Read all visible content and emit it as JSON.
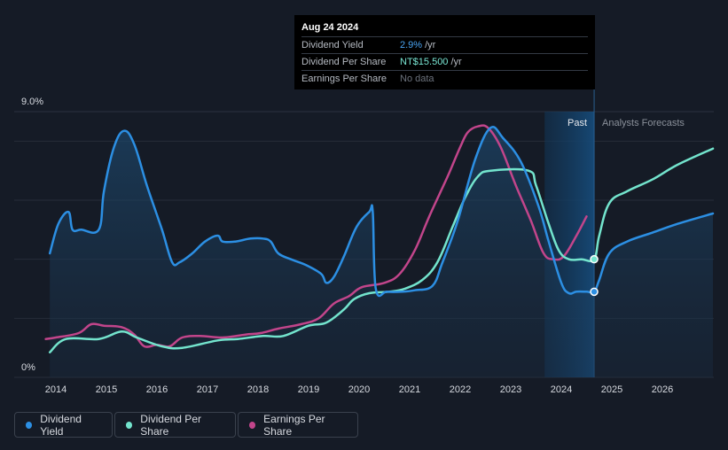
{
  "tooltip": {
    "date": "Aug 24 2024",
    "rows": [
      {
        "label": "Dividend Yield",
        "value": "2.9%",
        "unit": "/yr"
      },
      {
        "label": "Dividend Per Share",
        "value": "NT$15.500",
        "unit": "/yr"
      },
      {
        "label": "Earnings Per Share",
        "value": "No data",
        "unit": ""
      }
    ]
  },
  "legend": [
    {
      "label": "Dividend Yield",
      "color": "#2c8fe3"
    },
    {
      "label": "Dividend Per Share",
      "color": "#73e4cd"
    },
    {
      "label": "Earnings Per Share",
      "color": "#c2458b"
    }
  ],
  "chart_data": {
    "type": "line",
    "y_top_label": "9.0%",
    "y_bottom_label": "0%",
    "ylim": [
      0,
      9
    ],
    "xlim": [
      2013.8,
      2027.0
    ],
    "x_ticks": [
      "2014",
      "2015",
      "2016",
      "2017",
      "2018",
      "2019",
      "2020",
      "2021",
      "2022",
      "2023",
      "2024",
      "2025",
      "2026"
    ],
    "regions": {
      "past_label": "Past",
      "forecast_label": "Analysts Forecasts",
      "past_start": 2023.67,
      "past_end": 2024.65
    },
    "grid": true,
    "series": [
      {
        "name": "Dividend Yield",
        "color": "#2c8fe3",
        "area": true,
        "points": [
          [
            2013.88,
            4.2
          ],
          [
            2014.05,
            5.2
          ],
          [
            2014.25,
            5.6
          ],
          [
            2014.33,
            5.0
          ],
          [
            2014.5,
            5.0
          ],
          [
            2014.85,
            5.0
          ],
          [
            2014.95,
            6.3
          ],
          [
            2015.15,
            7.8
          ],
          [
            2015.35,
            8.35
          ],
          [
            2015.55,
            7.9
          ],
          [
            2015.8,
            6.5
          ],
          [
            2016.1,
            5.0
          ],
          [
            2016.3,
            3.9
          ],
          [
            2016.45,
            3.9
          ],
          [
            2016.7,
            4.2
          ],
          [
            2016.95,
            4.6
          ],
          [
            2017.2,
            4.8
          ],
          [
            2017.3,
            4.6
          ],
          [
            2017.55,
            4.6
          ],
          [
            2017.85,
            4.7
          ],
          [
            2018.1,
            4.7
          ],
          [
            2018.25,
            4.6
          ],
          [
            2018.4,
            4.2
          ],
          [
            2018.65,
            4.0
          ],
          [
            2018.95,
            3.8
          ],
          [
            2019.25,
            3.5
          ],
          [
            2019.35,
            3.2
          ],
          [
            2019.5,
            3.4
          ],
          [
            2019.7,
            4.1
          ],
          [
            2019.95,
            5.1
          ],
          [
            2020.2,
            5.6
          ],
          [
            2020.27,
            5.6
          ],
          [
            2020.33,
            3.0
          ],
          [
            2020.55,
            2.9
          ],
          [
            2020.85,
            2.9
          ],
          [
            2021.1,
            2.95
          ],
          [
            2021.45,
            3.1
          ],
          [
            2021.65,
            3.9
          ],
          [
            2021.95,
            5.3
          ],
          [
            2022.3,
            7.4
          ],
          [
            2022.6,
            8.45
          ],
          [
            2022.85,
            8.1
          ],
          [
            2023.2,
            7.3
          ],
          [
            2023.55,
            5.8
          ],
          [
            2023.75,
            4.6
          ],
          [
            2024.0,
            3.2
          ],
          [
            2024.15,
            2.85
          ],
          [
            2024.3,
            2.9
          ],
          [
            2024.5,
            2.9
          ],
          [
            2024.65,
            2.9
          ],
          [
            2024.75,
            3.3
          ],
          [
            2024.95,
            4.2
          ],
          [
            2025.3,
            4.6
          ],
          [
            2025.8,
            4.9
          ],
          [
            2026.3,
            5.2
          ],
          [
            2027.0,
            5.55
          ]
        ]
      },
      {
        "name": "Dividend Per Share",
        "color": "#73e4cd",
        "area": false,
        "points": [
          [
            2013.88,
            0.85
          ],
          [
            2014.2,
            1.3
          ],
          [
            2014.85,
            1.3
          ],
          [
            2015.3,
            1.55
          ],
          [
            2015.6,
            1.35
          ],
          [
            2016.1,
            1.05
          ],
          [
            2016.5,
            1.0
          ],
          [
            2017.2,
            1.25
          ],
          [
            2017.6,
            1.3
          ],
          [
            2018.1,
            1.4
          ],
          [
            2018.5,
            1.4
          ],
          [
            2019.0,
            1.75
          ],
          [
            2019.35,
            1.85
          ],
          [
            2019.7,
            2.3
          ],
          [
            2019.9,
            2.65
          ],
          [
            2020.2,
            2.85
          ],
          [
            2020.6,
            2.9
          ],
          [
            2020.9,
            3.0
          ],
          [
            2021.25,
            3.3
          ],
          [
            2021.55,
            3.9
          ],
          [
            2021.85,
            5.1
          ],
          [
            2022.1,
            6.1
          ],
          [
            2022.35,
            6.8
          ],
          [
            2022.6,
            7.0
          ],
          [
            2023.35,
            7.0
          ],
          [
            2023.5,
            6.5
          ],
          [
            2023.75,
            5.2
          ],
          [
            2023.95,
            4.3
          ],
          [
            2024.15,
            4.0
          ],
          [
            2024.4,
            4.0
          ],
          [
            2024.65,
            4.0
          ],
          [
            2024.75,
            4.8
          ],
          [
            2024.95,
            5.9
          ],
          [
            2025.3,
            6.3
          ],
          [
            2025.8,
            6.7
          ],
          [
            2026.3,
            7.2
          ],
          [
            2027.0,
            7.75
          ]
        ]
      },
      {
        "name": "Earnings Per Share",
        "color": "#c2458b",
        "area": false,
        "points": [
          [
            2013.8,
            1.3
          ],
          [
            2014.0,
            1.35
          ],
          [
            2014.45,
            1.5
          ],
          [
            2014.7,
            1.8
          ],
          [
            2014.95,
            1.75
          ],
          [
            2015.3,
            1.7
          ],
          [
            2015.55,
            1.45
          ],
          [
            2015.75,
            1.05
          ],
          [
            2016.0,
            1.1
          ],
          [
            2016.25,
            1.05
          ],
          [
            2016.5,
            1.35
          ],
          [
            2016.85,
            1.4
          ],
          [
            2017.3,
            1.35
          ],
          [
            2017.75,
            1.45
          ],
          [
            2018.05,
            1.5
          ],
          [
            2018.4,
            1.65
          ],
          [
            2018.85,
            1.8
          ],
          [
            2019.2,
            2.0
          ],
          [
            2019.5,
            2.5
          ],
          [
            2019.8,
            2.75
          ],
          [
            2020.05,
            3.05
          ],
          [
            2020.5,
            3.2
          ],
          [
            2020.8,
            3.5
          ],
          [
            2021.1,
            4.3
          ],
          [
            2021.4,
            5.5
          ],
          [
            2021.75,
            6.8
          ],
          [
            2022.0,
            7.8
          ],
          [
            2022.15,
            8.3
          ],
          [
            2022.35,
            8.5
          ],
          [
            2022.55,
            8.45
          ],
          [
            2022.8,
            7.8
          ],
          [
            2023.1,
            6.5
          ],
          [
            2023.4,
            5.3
          ],
          [
            2023.65,
            4.2
          ],
          [
            2023.85,
            4.0
          ],
          [
            2024.05,
            4.1
          ],
          [
            2024.3,
            4.8
          ],
          [
            2024.5,
            5.45
          ]
        ]
      }
    ],
    "markers": [
      {
        "series": "Dividend Yield",
        "x": 2024.65,
        "y": 2.9
      },
      {
        "series": "Dividend Per Share",
        "x": 2024.65,
        "y": 4.0
      }
    ]
  }
}
